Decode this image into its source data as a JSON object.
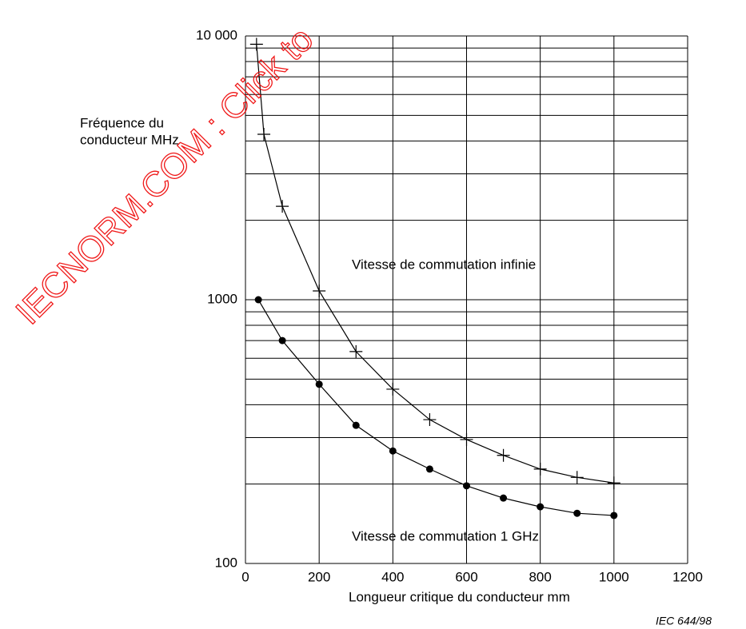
{
  "chart_data": {
    "type": "line",
    "log_y": true,
    "grid": true,
    "y_label": [
      "Fréquence du",
      "conducteur    MHz"
    ],
    "x_label": "Longueur critique du conducteur    mm",
    "source": "IEC  644/98",
    "watermark": "IECNORM.COM : Click to",
    "xlim": [
      0,
      1200
    ],
    "xticks": [
      0,
      200,
      400,
      600,
      800,
      1000,
      1200
    ],
    "ylim": [
      100,
      10000
    ],
    "yticks": [
      100,
      1000,
      {
        "value": 10000,
        "label": "10 000"
      }
    ],
    "y_minor_grid": [
      200,
      300,
      400,
      500,
      600,
      700,
      800,
      900,
      2000,
      3000,
      4000,
      5000,
      6000,
      7000,
      8000,
      9000
    ],
    "series": [
      {
        "name": "Vitesse de commutation infinie",
        "color": "#000000",
        "marker": "plus",
        "x": [
          30,
          50,
          100,
          200,
          300,
          400,
          500,
          600,
          700,
          800,
          900,
          1000
        ],
        "values": [
          9300,
          4240,
          2260,
          1080,
          636,
          458,
          351,
          295,
          257,
          228,
          212,
          202
        ]
      },
      {
        "name": "Vitesse de commutation 1 GHz",
        "color": "#000000",
        "marker": "dot",
        "x": [
          35,
          100,
          200,
          300,
          400,
          500,
          600,
          700,
          800,
          900,
          1000
        ],
        "values": [
          1000,
          700,
          478,
          334,
          267,
          228,
          197,
          177,
          164,
          155,
          152
        ]
      }
    ]
  }
}
